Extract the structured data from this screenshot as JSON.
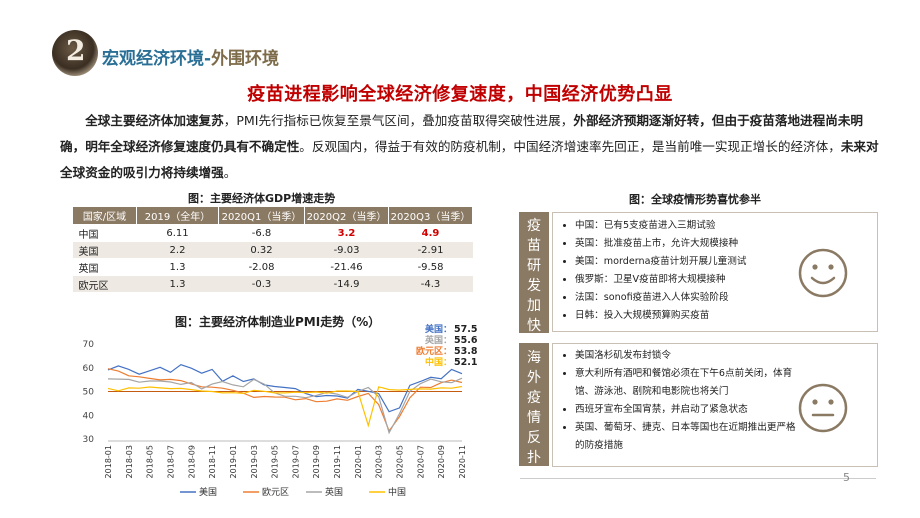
{
  "header": {
    "logo_digit": "2",
    "section_title_main": "宏观经济环境-",
    "section_title_sub": "外围环境"
  },
  "headline": "疫苗进程影响全球经济修复速度，中国经济优势凸显",
  "paragraph": {
    "p1_bold": "全球主要经济体加速复苏",
    "p1_text": "，PMI先行指标已恢复至景气区间，叠加疫苗取得突破性进展，",
    "p2_bold": "外部经济预期逐渐好转，但由于疫苗落地进程尚未明确，明年全球经济修复速度仍具有不确定性",
    "p3_text": "。反观国内，得益于有效的防疫机制，中国经济增速率先回正，是当前唯一实现正增长的经济体，",
    "p4_bold": "未来对全球资金的吸引力将持续增强",
    "p5_text": "。"
  },
  "gdp_table": {
    "caption": "图：主要经济体GDP增速走势",
    "headers": [
      "国家/区域",
      "2019（全年）",
      "2020Q1（当季）",
      "2020Q2（当季）",
      "2020Q3（当季）"
    ],
    "rows": [
      [
        "中国",
        "6.11",
        "-6.8",
        "3.2",
        "4.9"
      ],
      [
        "美国",
        "2.2",
        "0.32",
        "-9.03",
        "-2.91"
      ],
      [
        "英国",
        "1.3",
        "-2.08",
        "-21.46",
        "-9.58"
      ],
      [
        "欧元区",
        "1.3",
        "-0.3",
        "-14.9",
        "-4.3"
      ]
    ]
  },
  "pmi_caption": "图：主要经济体制造业PMI走势（%）",
  "chart_data": {
    "type": "line",
    "title": "图：主要经济体制造业PMI走势（%）",
    "ylim": [
      30,
      70
    ],
    "yticks": [
      30,
      40,
      50,
      60,
      70
    ],
    "x": [
      "2018-01",
      "2018-02",
      "2018-03",
      "2018-04",
      "2018-05",
      "2018-06",
      "2018-07",
      "2018-08",
      "2018-09",
      "2018-10",
      "2018-11",
      "2018-12",
      "2019-01",
      "2019-02",
      "2019-03",
      "2019-04",
      "2019-05",
      "2019-06",
      "2019-07",
      "2019-08",
      "2019-09",
      "2019-10",
      "2019-11",
      "2019-12",
      "2020-01",
      "2020-02",
      "2020-03",
      "2020-04",
      "2020-05",
      "2020-06",
      "2020-07",
      "2020-08",
      "2020-09",
      "2020-10",
      "2020-11"
    ],
    "xtick_labels": [
      "2018-01",
      "2018-03",
      "2018-05",
      "2018-07",
      "2018-09",
      "2018-11",
      "2019-01",
      "2019-03",
      "2019-05",
      "2019-07",
      "2019-09",
      "2019-11",
      "2020-01",
      "2020-03",
      "2020-05",
      "2020-07",
      "2020-09",
      "2020-11"
    ],
    "series": [
      {
        "name": "美国",
        "color": "#4472c4",
        "values": [
          59.1,
          60.8,
          59.3,
          57.3,
          58.7,
          60.2,
          58.1,
          61.3,
          59.8,
          57.7,
          59.3,
          54.3,
          56.6,
          54.2,
          55.3,
          52.8,
          52.1,
          51.7,
          51.2,
          49.1,
          47.8,
          48.3,
          48.1,
          47.2,
          50.9,
          50.1,
          49.1,
          41.5,
          43.1,
          52.6,
          54.2,
          56.0,
          55.4,
          59.3,
          57.5
        ]
      },
      {
        "name": "欧元区",
        "color": "#ed7d31",
        "values": [
          59.6,
          58.6,
          56.6,
          56.2,
          55.5,
          54.9,
          55.1,
          54.6,
          53.2,
          52.0,
          51.8,
          51.4,
          50.5,
          49.3,
          47.5,
          47.9,
          47.7,
          47.6,
          46.5,
          47.0,
          45.7,
          45.9,
          46.9,
          46.3,
          47.9,
          49.2,
          44.5,
          33.4,
          39.4,
          47.4,
          51.8,
          51.7,
          53.7,
          54.8,
          53.8
        ]
      },
      {
        "name": "英国",
        "color": "#a5a5a5",
        "values": [
          55.3,
          55.2,
          55.1,
          53.9,
          54.4,
          54.4,
          54.0,
          53.0,
          53.8,
          51.1,
          53.1,
          54.2,
          52.8,
          52.0,
          55.1,
          53.1,
          49.4,
          48.0,
          48.0,
          47.4,
          48.3,
          49.6,
          48.9,
          47.5,
          50.0,
          51.7,
          47.8,
          32.6,
          40.7,
          50.1,
          53.3,
          55.2,
          54.1,
          53.7,
          55.6
        ]
      },
      {
        "name": "中国",
        "color": "#ffc000",
        "values": [
          51.3,
          50.3,
          51.5,
          51.4,
          51.9,
          51.5,
          51.2,
          51.3,
          50.8,
          50.2,
          50.0,
          49.4,
          49.5,
          49.2,
          50.5,
          50.1,
          49.4,
          49.4,
          49.7,
          49.5,
          49.8,
          49.3,
          50.2,
          50.2,
          50.0,
          35.7,
          52.0,
          50.8,
          50.6,
          50.9,
          51.1,
          51.0,
          51.5,
          51.4,
          52.1
        ]
      }
    ],
    "end_labels": [
      {
        "series": "美国",
        "label": "美国：",
        "value": "57.5"
      },
      {
        "series": "英国",
        "label": "英国：",
        "value": "55.6"
      },
      {
        "series": "欧元区",
        "label": "欧元区：",
        "value": "53.8"
      },
      {
        "series": "中国",
        "label": "中国：",
        "value": "52.1"
      }
    ],
    "legend": [
      "美国",
      "欧元区",
      "英国",
      "中国"
    ],
    "legend_position": "bottom"
  },
  "epidemic_caption": "图：全球疫情形势喜忧参半",
  "vaccine_panel": {
    "tag": [
      "疫",
      "苗",
      "研",
      "发",
      "加",
      "快"
    ],
    "items": [
      "中国：已有5支疫苗进入三期试验",
      "英国：批准疫苗上市，允许大规模接种",
      "美国：morderna疫苗计划开展儿童测试",
      "俄罗斯：卫星V疫苗即将大规模接种",
      "法国：sonofi疫苗进入人体实验阶段",
      "日韩：投入大规模预算购买疫苗"
    ],
    "face": "happy"
  },
  "overseas_panel": {
    "tag": [
      "海",
      "外",
      "疫",
      "情",
      "反",
      "扑"
    ],
    "items": [
      "美国洛杉矶发布封锁令",
      "意大利所有酒吧和餐馆必须在下午6点前关闭，体育馆、游泳池、剧院和电影院也将关门",
      "西班牙宣布全国宵禁，并启动了紧急状态",
      "英国、葡萄牙、捷克、日本等国也在近期推出更严格的防疫措施"
    ],
    "face": "neutral"
  },
  "page_number": "5",
  "colors": {
    "accent_brown": "#8b7a63",
    "title_blue": "#2a6f95",
    "headline_red": "#c00000"
  }
}
